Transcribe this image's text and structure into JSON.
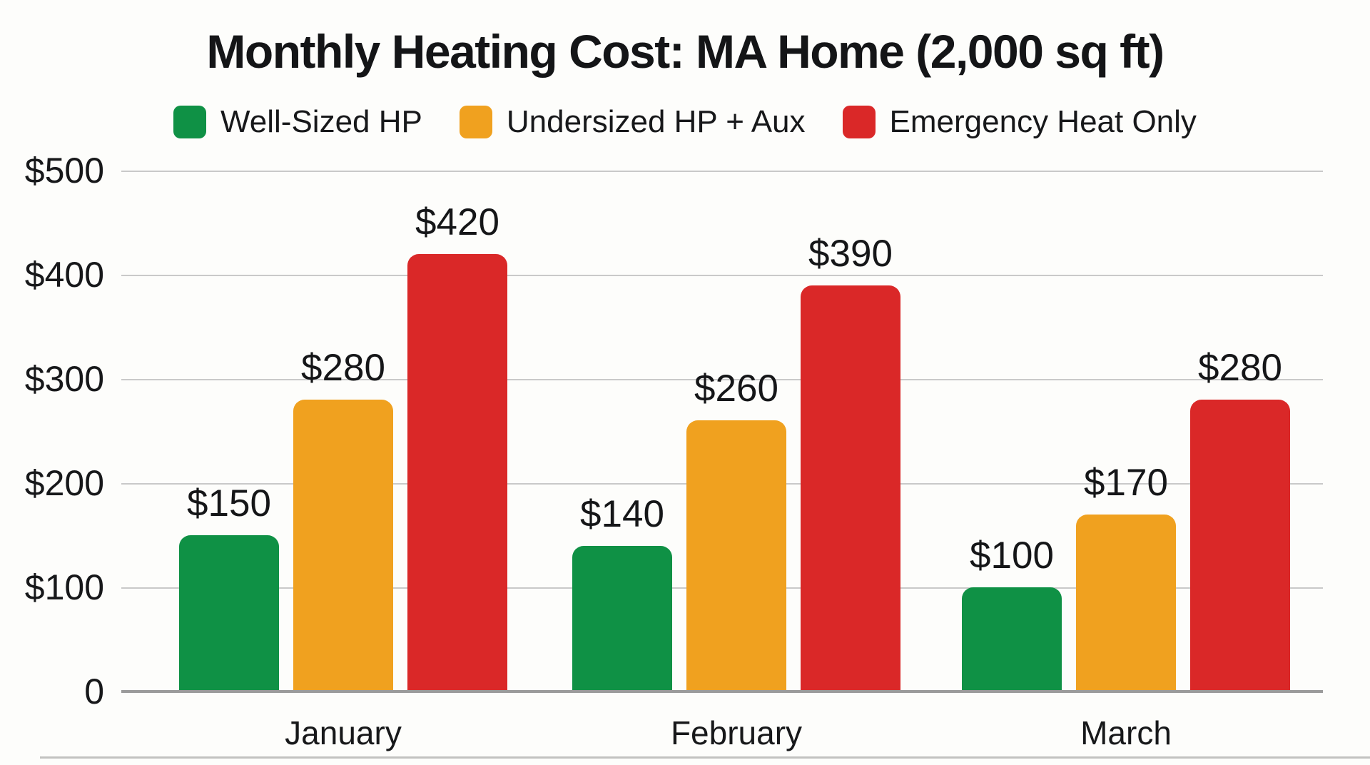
{
  "chart_data": {
    "type": "bar",
    "title": "Monthly Heating Cost: MA Home (2,000 sq ft)",
    "categories": [
      "January",
      "February",
      "March"
    ],
    "series": [
      {
        "name": "Well-Sized HP",
        "color": "#0f9145",
        "values": [
          150,
          140,
          100
        ],
        "labels": [
          "$150",
          "$140",
          "$100"
        ]
      },
      {
        "name": "Undersized HP + Aux",
        "color": "#f0a11f",
        "values": [
          280,
          260,
          170
        ],
        "labels": [
          "$280",
          "$260",
          "$170"
        ]
      },
      {
        "name": "Emergency Heat Only",
        "color": "#da2828",
        "values": [
          420,
          390,
          280
        ],
        "labels": [
          "$420",
          "$390",
          "$280"
        ]
      }
    ],
    "yticks": [
      {
        "label": "$500",
        "value": 500
      },
      {
        "label": "$400",
        "value": 400
      },
      {
        "label": "$300",
        "value": 300
      },
      {
        "label": "$200",
        "value": 200
      },
      {
        "label": "$100",
        "value": 100
      },
      {
        "label": "0",
        "value": 0
      }
    ],
    "ylim": [
      0,
      500
    ],
    "grid": true,
    "legend_position": "top",
    "colors": {
      "gridline": "#c9c9c9",
      "baseline": "#9b9b9b",
      "text": "#17181a",
      "background": "#fdfdfb"
    }
  }
}
